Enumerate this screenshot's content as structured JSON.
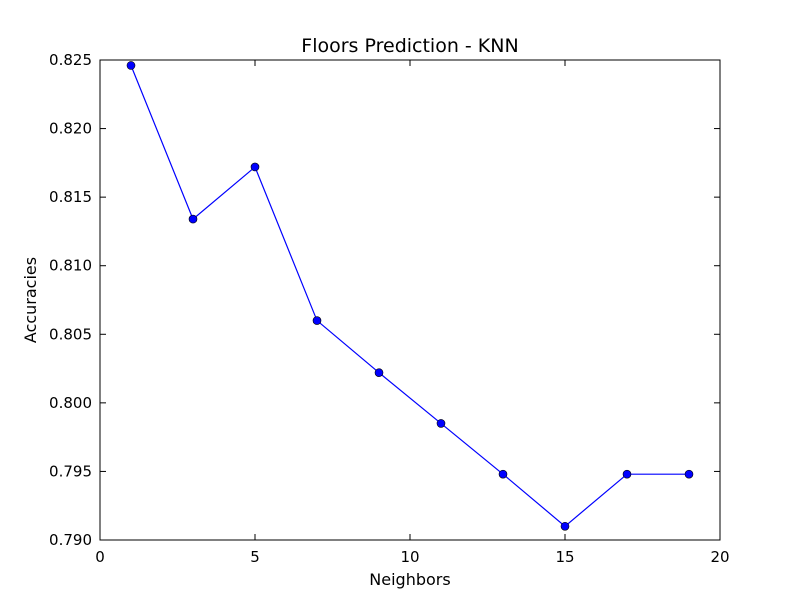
{
  "chart_data": {
    "type": "line",
    "title": "Floors Prediction - KNN",
    "xlabel": "Neighbors",
    "ylabel": "Accuracies",
    "xlim": [
      0,
      20
    ],
    "ylim": [
      0.79,
      0.825
    ],
    "xticks": [
      0,
      5,
      10,
      15,
      20
    ],
    "xtick_labels": [
      "0",
      "5",
      "10",
      "15",
      "20"
    ],
    "yticks": [
      0.79,
      0.795,
      0.8,
      0.805,
      0.81,
      0.815,
      0.82,
      0.825
    ],
    "ytick_labels": [
      "0.790",
      "0.795",
      "0.800",
      "0.805",
      "0.810",
      "0.815",
      "0.820",
      "0.825"
    ],
    "grid": false,
    "series": [
      {
        "color": "#0000ff",
        "marker": "circle",
        "x": [
          1,
          3,
          5,
          7,
          9,
          11,
          13,
          15,
          17,
          19
        ],
        "y": [
          0.8246,
          0.8134,
          0.8172,
          0.806,
          0.8022,
          0.7985,
          0.7948,
          0.791,
          0.7948,
          0.7948
        ]
      }
    ]
  }
}
